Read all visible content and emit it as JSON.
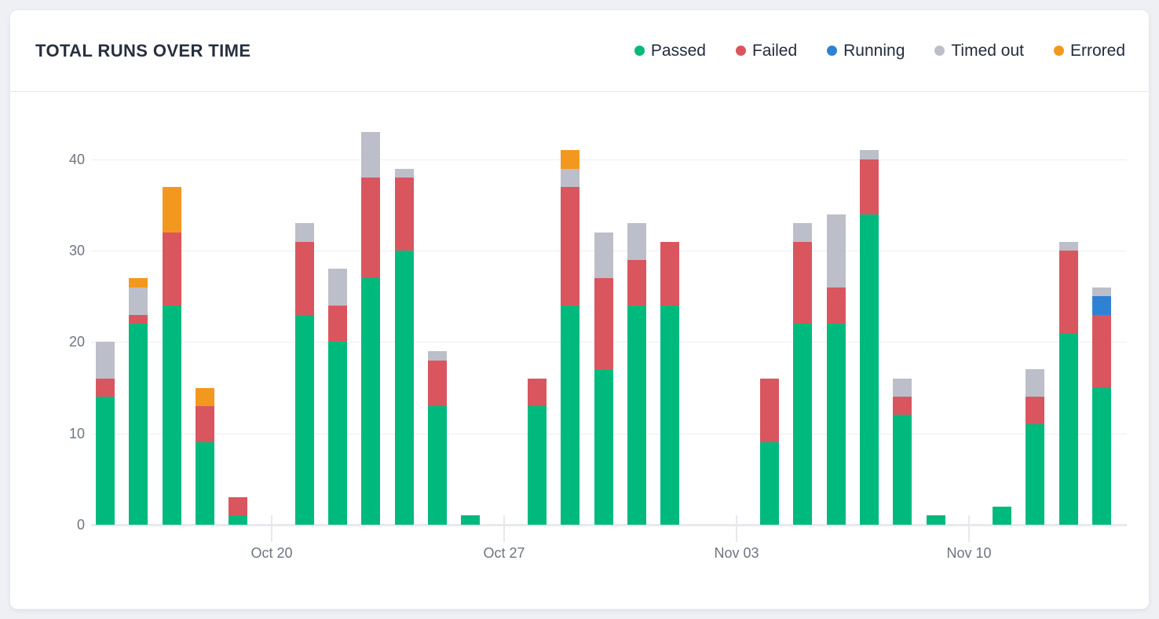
{
  "card": {
    "title": "TOTAL RUNS OVER TIME"
  },
  "colors": {
    "passed": "#00ba7d",
    "failed": "#d9565f",
    "running": "#2e82d4",
    "timed_out": "#bcbfc9",
    "errored": "#f3981f",
    "grid": "#edeef2",
    "axis_line": "#e7e9ed",
    "axis_text": "#6e7580",
    "title_text": "#27303f",
    "legend_text": "#212d3e"
  },
  "legend": [
    {
      "key": "passed",
      "label": "Passed"
    },
    {
      "key": "failed",
      "label": "Failed"
    },
    {
      "key": "running",
      "label": "Running"
    },
    {
      "key": "timed_out",
      "label": "Timed out"
    },
    {
      "key": "errored",
      "label": "Errored"
    }
  ],
  "chart_data": {
    "type": "bar",
    "stacked": true,
    "title": "TOTAL RUNS OVER TIME",
    "xlabel": "",
    "ylabel": "",
    "ylim": [
      0,
      44
    ],
    "y_ticks": [
      0,
      10,
      20,
      30,
      40
    ],
    "grid": true,
    "legend_position": "top-right",
    "stack_order_bottom_to_top": [
      "passed",
      "failed",
      "running",
      "timed_out",
      "errored"
    ],
    "x": [
      "Oct 15",
      "Oct 16",
      "Oct 17",
      "Oct 18",
      "Oct 19",
      "Oct 20",
      "Oct 21",
      "Oct 22",
      "Oct 23",
      "Oct 24",
      "Oct 25",
      "Oct 26",
      "Oct 27",
      "Oct 28",
      "Oct 29",
      "Oct 30",
      "Oct 31",
      "Nov 01",
      "Nov 02",
      "Nov 03",
      "Nov 04",
      "Nov 05",
      "Nov 06",
      "Nov 07",
      "Nov 08",
      "Nov 09",
      "Nov 10",
      "Nov 11",
      "Nov 12",
      "Nov 13",
      "Nov 14"
    ],
    "x_ticks": [
      {
        "index": 5,
        "label": "Oct 20"
      },
      {
        "index": 12,
        "label": "Oct 27"
      },
      {
        "index": 19,
        "label": "Nov 03"
      },
      {
        "index": 26,
        "label": "Nov 10"
      }
    ],
    "series": [
      {
        "name": "Passed",
        "key": "passed",
        "values": [
          14,
          22,
          24,
          9,
          1,
          0,
          23,
          20,
          27,
          30,
          13,
          1,
          0,
          13,
          24,
          17,
          24,
          24,
          0,
          0,
          9,
          22,
          22,
          34,
          12,
          1,
          0,
          2,
          11,
          21,
          15
        ]
      },
      {
        "name": "Failed",
        "key": "failed",
        "values": [
          2,
          1,
          8,
          4,
          2,
          0,
          8,
          4,
          11,
          8,
          5,
          0,
          0,
          3,
          13,
          10,
          5,
          7,
          0,
          0,
          7,
          9,
          4,
          6,
          2,
          0,
          0,
          0,
          3,
          9,
          8
        ]
      },
      {
        "name": "Running",
        "key": "running",
        "values": [
          0,
          0,
          0,
          0,
          0,
          0,
          0,
          0,
          0,
          0,
          0,
          0,
          0,
          0,
          0,
          0,
          0,
          0,
          0,
          0,
          0,
          0,
          0,
          0,
          0,
          0,
          0,
          0,
          0,
          0,
          2
        ]
      },
      {
        "name": "Timed out",
        "key": "timed_out",
        "values": [
          4,
          3,
          0,
          0,
          0,
          0,
          2,
          4,
          5,
          1,
          1,
          0,
          0,
          0,
          2,
          5,
          4,
          0,
          0,
          0,
          0,
          2,
          8,
          1,
          2,
          0,
          0,
          0,
          3,
          1,
          1
        ]
      },
      {
        "name": "Errored",
        "key": "errored",
        "values": [
          0,
          1,
          5,
          2,
          0,
          0,
          0,
          0,
          0,
          0,
          0,
          0,
          0,
          0,
          2,
          0,
          0,
          0,
          0,
          0,
          0,
          0,
          0,
          0,
          0,
          0,
          0,
          0,
          0,
          0,
          0
        ]
      }
    ],
    "totals": [
      20,
      27,
      37,
      15,
      3,
      0,
      33,
      28,
      43,
      39,
      19,
      1,
      0,
      16,
      41,
      32,
      33,
      31,
      0,
      0,
      16,
      33,
      34,
      41,
      16,
      1,
      0,
      2,
      17,
      31,
      26
    ]
  }
}
